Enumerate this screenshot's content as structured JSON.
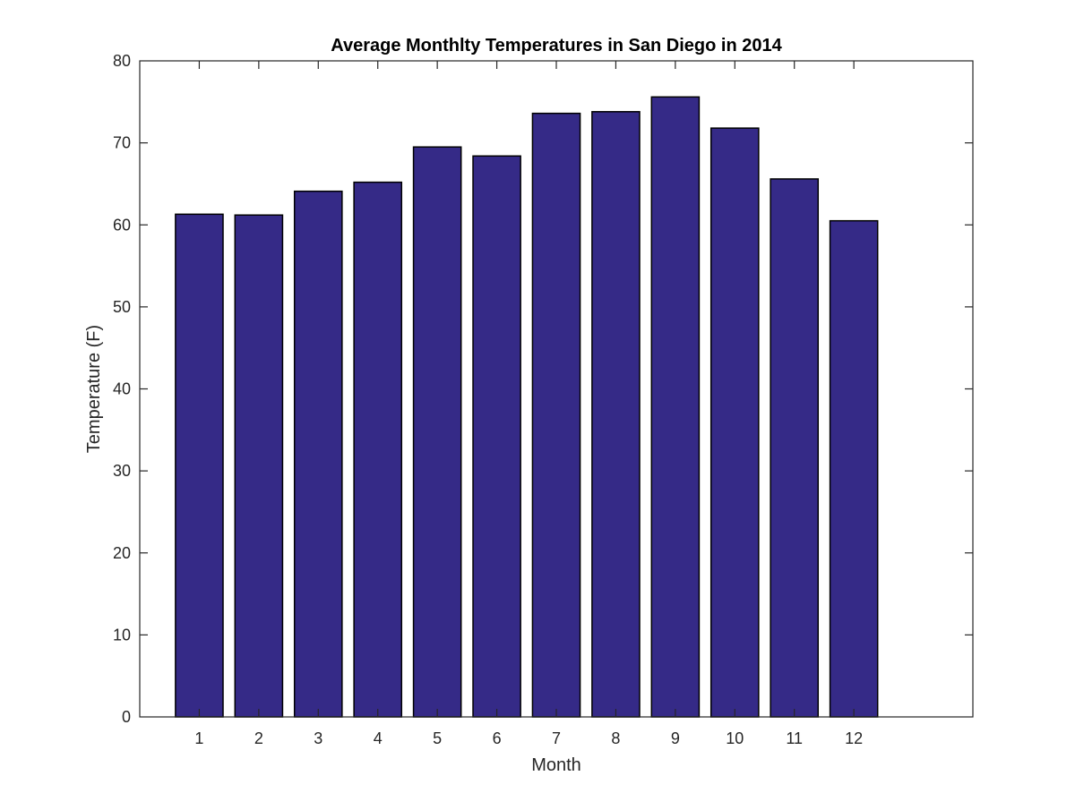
{
  "chart_data": {
    "type": "bar",
    "title": "Average Monthlty Temperatures in San Diego in 2014",
    "xlabel": "Month",
    "ylabel": "Temperature (F)",
    "categories": [
      "1",
      "2",
      "3",
      "4",
      "5",
      "6",
      "7",
      "8",
      "9",
      "10",
      "11",
      "12"
    ],
    "values": [
      61.3,
      61.2,
      64.1,
      65.2,
      69.5,
      68.4,
      73.6,
      73.8,
      75.6,
      71.8,
      65.6,
      60.5
    ],
    "xlim": [
      0,
      14
    ],
    "ylim": [
      0,
      80
    ],
    "yticks": [
      0,
      10,
      20,
      30,
      40,
      50,
      60,
      70,
      80
    ],
    "grid": false,
    "legend": "none",
    "colors": {
      "bar_fill": "#352a87",
      "bar_edge": "#000000",
      "axis": "#262626"
    }
  }
}
